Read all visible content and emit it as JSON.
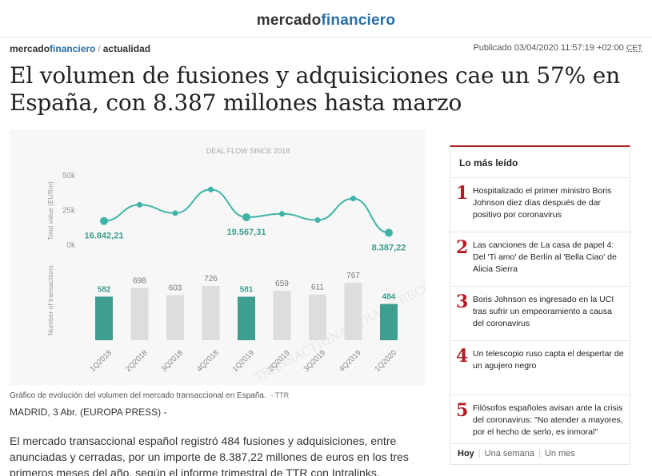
{
  "site": {
    "logo_part1": "mercado",
    "logo_part2": "financiero"
  },
  "breadcrumb": {
    "site_part1": "mercado",
    "site_part2": "financiero",
    "separator": "/",
    "section": "actualidad"
  },
  "published": {
    "label": "Publicado 03/04/2020 11:57:19 +02:00",
    "timezone": "CET"
  },
  "headline": "El volumen de fusiones y adquisiciones cae un 57% en España, con 8.387 millones hasta marzo",
  "figure": {
    "caption": "Gráfico de evolución del volumen del mercado transaccional en España.",
    "source": "- TTR",
    "watermark": "TRANSACTIONAL TRACK RECORD",
    "colors": {
      "line": "#3fb3a6",
      "highlight_bar": "#3e9e90",
      "bar": "#dddddd"
    }
  },
  "dateline": "MADRID, 3 Abr. (EUROPA PRESS) -",
  "body": {
    "line1": "El mercado transaccional español registró 484 fusiones y adquisiciones, entre",
    "line2": "anunciadas y cerradas, por un importe de 8.387,22 millones de euros en los tres",
    "line3": "primeros meses del año, según el informe trimestral de TTR con Intralinks."
  },
  "most_read": {
    "title": "Lo más leído",
    "items": [
      {
        "rank": "1",
        "text": "Hospitalizado el primer ministro Boris Johnson diez días después de dar positivo por coronavirus"
      },
      {
        "rank": "2",
        "text": "Las canciones de La casa de papel 4: Del 'Ti amo' de Berlín al 'Bella Ciao' de Alicia Sierra"
      },
      {
        "rank": "3",
        "text": "Boris Johnson es ingresado en la UCI tras sufrir un empeoramiento a causa del coronavirus"
      },
      {
        "rank": "4",
        "text": "Un telescopio ruso capta el despertar de un agujero negro"
      },
      {
        "rank": "5",
        "text": "Filósofos españoles avisan ante la crisis del coronavirus: \"No atender a mayores, por el hecho de serlo, es inmoral\""
      }
    ],
    "tabs": [
      "Hoy",
      "Una semana",
      "Un mes"
    ]
  },
  "chart_data": {
    "type": "line",
    "title": "DEAL FLOW SINCE 2018",
    "categories": [
      "1Q2018",
      "2Q2018",
      "3Q2018",
      "4Q2018",
      "1Q2019",
      "2Q2019",
      "3Q2019",
      "4Q2019",
      "1Q2020"
    ],
    "ylabel": "Total value (EURm)",
    "yticks": [
      "50k",
      "25k",
      "0k"
    ],
    "ylim": [
      0,
      50000
    ],
    "series": [
      {
        "name": "Total value (EURm)",
        "values": [
          16842.21,
          28500,
          22500,
          39500,
          19567.31,
          22000,
          17500,
          33000,
          8387.22
        ]
      }
    ],
    "value_labels": [
      {
        "category": "1Q2018",
        "text": "16.842,21"
      },
      {
        "category": "1Q2019",
        "text": "19.567,31"
      },
      {
        "category": "1Q2020",
        "text": "8.387,22"
      }
    ],
    "bars": {
      "ylabel": "Number of transactions",
      "values": [
        582,
        698,
        603,
        726,
        581,
        659,
        611,
        767,
        484
      ],
      "highlighted": [
        "1Q2018",
        "1Q2019",
        "1Q2020"
      ]
    }
  }
}
